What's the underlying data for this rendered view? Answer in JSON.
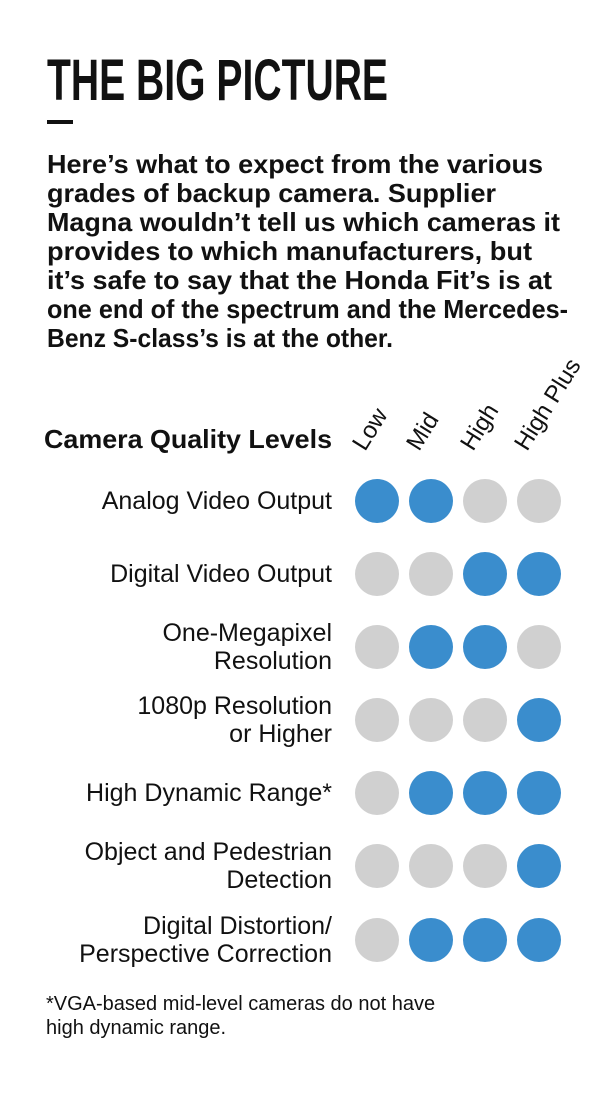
{
  "title": "THE BIG PICTURE",
  "intro": [
    "Here’s what to expect from the various",
    "grades of backup camera. Supplier",
    "Magna wouldn’t tell us which cameras it",
    "provides to which manufacturers, but",
    "it’s safe to say that the Honda Fit’s is at",
    "one end of the spectrum and the Mercedes-",
    "Benz S-class’s is at the other."
  ],
  "table": {
    "header": "Camera Quality Levels",
    "columns": [
      "Low",
      "Mid",
      "High",
      "High Plus"
    ],
    "on_color": "#3a8dcd",
    "off_color": "#d0d0d0",
    "rows": [
      {
        "label": [
          "Analog Video Output"
        ],
        "cells": [
          true,
          true,
          false,
          false
        ]
      },
      {
        "label": [
          "Digital Video Output"
        ],
        "cells": [
          false,
          false,
          true,
          true
        ]
      },
      {
        "label": [
          "One-Megapixel",
          "Resolution"
        ],
        "cells": [
          false,
          true,
          true,
          false
        ]
      },
      {
        "label": [
          "1080p Resolution",
          "or Higher"
        ],
        "cells": [
          false,
          false,
          false,
          true
        ]
      },
      {
        "label": [
          "High Dynamic Range*"
        ],
        "cells": [
          false,
          true,
          true,
          true
        ]
      },
      {
        "label": [
          "Object and Pedestrian",
          "Detection"
        ],
        "cells": [
          false,
          false,
          false,
          true
        ]
      },
      {
        "label": [
          "Digital Distortion/",
          "Perspective Correction"
        ],
        "cells": [
          false,
          true,
          true,
          true
        ]
      }
    ]
  },
  "footnote": [
    "*VGA-based mid-level cameras do not have",
    "high dynamic range."
  ]
}
